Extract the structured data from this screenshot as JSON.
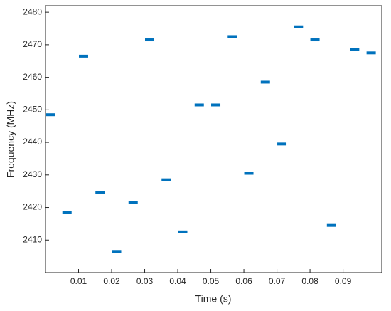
{
  "chart_data": {
    "type": "segments",
    "x_label": "Time (s)",
    "y_label": "Frequency (MHz)",
    "xlim": [
      0,
      0.1017
    ],
    "ylim": [
      2400,
      2482
    ],
    "xticks": [
      0.01,
      0.02,
      0.03,
      0.04,
      0.05,
      0.06,
      0.07,
      0.08,
      0.09
    ],
    "yticks": [
      2410,
      2420,
      2430,
      2440,
      2450,
      2460,
      2470,
      2480
    ],
    "color": "#0072bd",
    "x": [
      0.0015,
      0.0065,
      0.0115,
      0.0165,
      0.0215,
      0.0265,
      0.0315,
      0.0365,
      0.0415,
      0.0465,
      0.0515,
      0.0565,
      0.0615,
      0.0665,
      0.0715,
      0.0765,
      0.0815,
      0.0865,
      0.0935,
      0.0985
    ],
    "values": [
      2448.5,
      2418.5,
      2466.5,
      2424.5,
      2406.5,
      2421.5,
      2471.5,
      2428.5,
      2412.5,
      2451.5,
      2451.5,
      2472.5,
      2430.5,
      2458.5,
      2439.5,
      2475.5,
      2471.5,
      2414.5,
      2468.5,
      2467.5
    ]
  }
}
